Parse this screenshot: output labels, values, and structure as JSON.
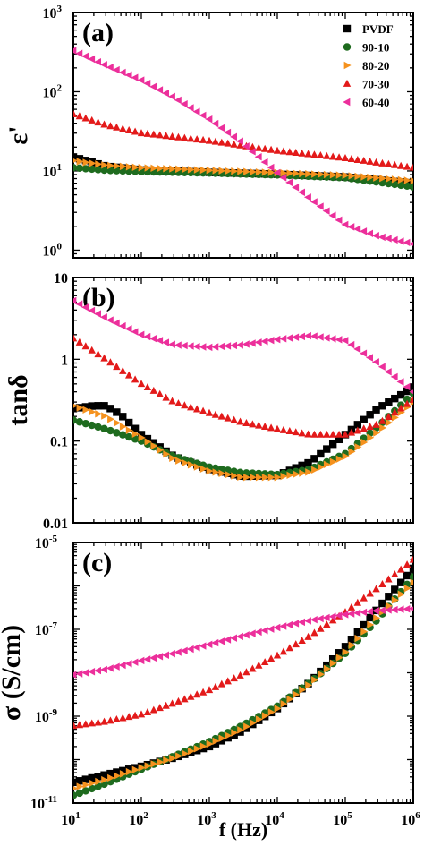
{
  "x_axis": {
    "label": "f (Hz)",
    "scale": "log",
    "range": [
      10,
      1000000
    ],
    "tick_mantissa": "10",
    "tick_exponents": [
      "1",
      "2",
      "3",
      "4",
      "5",
      "6"
    ]
  },
  "legend": [
    "PVDF",
    "90-10",
    "80-20",
    "70-30",
    "60-40"
  ],
  "colors": {
    "PVDF": "#000000",
    "90-10": "#1e6b1e",
    "80-20": "#f5921e",
    "70-30": "#e31a1a",
    "60-40": "#ec2f9b"
  },
  "markers": {
    "PVDF": "square",
    "90-10": "circle",
    "80-20": "triangle-right",
    "70-30": "triangle-up",
    "60-40": "triangle-left"
  },
  "chart_data": [
    {
      "type": "scatter",
      "panel_label": "(a)",
      "ylabel": "ε'",
      "yscale": "log",
      "ylim": [
        0.8,
        1000
      ],
      "ytick_labels": [
        {
          "value": 1,
          "mantissa": "10",
          "exp": "0"
        },
        {
          "value": 10,
          "mantissa": "10",
          "exp": "1"
        },
        {
          "value": 100,
          "mantissa": "10",
          "exp": "2"
        },
        {
          "value": 1000,
          "mantissa": "10",
          "exp": "3"
        }
      ],
      "legend_position": "top-right",
      "series": [
        {
          "name": "PVDF",
          "points": [
            [
              10,
              15
            ],
            [
              30,
              11.5
            ],
            [
              100,
              10.3
            ],
            [
              1000,
              9.6
            ],
            [
              10000,
              9.1
            ],
            [
              100000,
              8.4
            ],
            [
              1000000,
              7
            ]
          ]
        },
        {
          "name": "90-10",
          "points": [
            [
              10,
              11
            ],
            [
              30,
              10.2
            ],
            [
              100,
              9.8
            ],
            [
              1000,
              9.4
            ],
            [
              10000,
              8.9
            ],
            [
              100000,
              8.2
            ],
            [
              1000000,
              6.3
            ]
          ]
        },
        {
          "name": "80-20",
          "points": [
            [
              10,
              13.5
            ],
            [
              30,
              11.8
            ],
            [
              100,
              11
            ],
            [
              1000,
              10.2
            ],
            [
              10000,
              9.5
            ],
            [
              100000,
              8.8
            ],
            [
              1000000,
              7.5
            ]
          ]
        },
        {
          "name": "70-30",
          "points": [
            [
              10,
              52
            ],
            [
              30,
              38
            ],
            [
              100,
              30
            ],
            [
              1000,
              24
            ],
            [
              10000,
              18
            ],
            [
              100000,
              14.5
            ],
            [
              1000000,
              11
            ]
          ]
        },
        {
          "name": "60-40",
          "points": [
            [
              10,
              330
            ],
            [
              30,
              215
            ],
            [
              100,
              140
            ],
            [
              300,
              85
            ],
            [
              1000,
              45
            ],
            [
              3000,
              23
            ],
            [
              10000,
              9.5
            ],
            [
              30000,
              4.5
            ],
            [
              100000,
              2.1
            ],
            [
              300000,
              1.5
            ],
            [
              1000000,
              1.2
            ]
          ]
        }
      ]
    },
    {
      "type": "scatter",
      "panel_label": "(b)",
      "ylabel": "tanδ",
      "yscale": "log",
      "ylim": [
        0.01,
        10
      ],
      "ytick_labels": [
        {
          "value": 0.01,
          "text": "0.01"
        },
        {
          "value": 0.1,
          "text": "0.1"
        },
        {
          "value": 1,
          "text": "1"
        },
        {
          "value": 10,
          "text": "10"
        }
      ],
      "series": [
        {
          "name": "PVDF",
          "points": [
            [
              10,
              0.25
            ],
            [
              20,
              0.27
            ],
            [
              30,
              0.27
            ],
            [
              50,
              0.21
            ],
            [
              100,
              0.12
            ],
            [
              300,
              0.065
            ],
            [
              1000,
              0.045
            ],
            [
              3000,
              0.037
            ],
            [
              10000,
              0.038
            ],
            [
              30000,
              0.055
            ],
            [
              100000,
              0.12
            ],
            [
              300000,
              0.25
            ],
            [
              1000000,
              0.45
            ]
          ]
        },
        {
          "name": "90-10",
          "points": [
            [
              10,
              0.18
            ],
            [
              30,
              0.14
            ],
            [
              100,
              0.1
            ],
            [
              300,
              0.065
            ],
            [
              1000,
              0.048
            ],
            [
              3000,
              0.041
            ],
            [
              10000,
              0.039
            ],
            [
              30000,
              0.045
            ],
            [
              100000,
              0.07
            ],
            [
              300000,
              0.15
            ],
            [
              1000000,
              0.38
            ]
          ]
        },
        {
          "name": "80-20",
          "points": [
            [
              10,
              0.27
            ],
            [
              30,
              0.2
            ],
            [
              100,
              0.11
            ],
            [
              300,
              0.06
            ],
            [
              1000,
              0.043
            ],
            [
              3000,
              0.036
            ],
            [
              10000,
              0.036
            ],
            [
              30000,
              0.042
            ],
            [
              100000,
              0.065
            ],
            [
              300000,
              0.13
            ],
            [
              1000000,
              0.3
            ]
          ]
        },
        {
          "name": "70-30",
          "points": [
            [
              10,
              1.8
            ],
            [
              30,
              1.0
            ],
            [
              100,
              0.5
            ],
            [
              300,
              0.3
            ],
            [
              1000,
              0.22
            ],
            [
              3000,
              0.17
            ],
            [
              10000,
              0.14
            ],
            [
              30000,
              0.12
            ],
            [
              100000,
              0.12
            ],
            [
              300000,
              0.16
            ],
            [
              1000000,
              0.32
            ]
          ]
        },
        {
          "name": "60-40",
          "points": [
            [
              10,
              5.2
            ],
            [
              30,
              3.2
            ],
            [
              100,
              2.0
            ],
            [
              300,
              1.5
            ],
            [
              1000,
              1.4
            ],
            [
              3000,
              1.5
            ],
            [
              10000,
              1.75
            ],
            [
              30000,
              1.95
            ],
            [
              100000,
              1.7
            ],
            [
              300000,
              0.9
            ],
            [
              1000000,
              0.4
            ]
          ]
        }
      ]
    },
    {
      "type": "scatter",
      "panel_label": "(c)",
      "ylabel": "σ (S/cm)",
      "yscale": "log",
      "ylim": [
        1e-11,
        1e-05
      ],
      "ytick_labels": [
        {
          "value": 1e-11,
          "mantissa": "10",
          "exp": "-11"
        },
        {
          "value": 1e-09,
          "mantissa": "10",
          "exp": "-9"
        },
        {
          "value": 1e-07,
          "mantissa": "10",
          "exp": "-7"
        },
        {
          "value": 1e-05,
          "mantissa": "10",
          "exp": "-5"
        }
      ],
      "series": [
        {
          "name": "PVDF",
          "points": [
            [
              10,
              3e-11
            ],
            [
              30,
              4.5e-11
            ],
            [
              100,
              7e-11
            ],
            [
              300,
              1.1e-10
            ],
            [
              1000,
              2e-10
            ],
            [
              3000,
              4.5e-10
            ],
            [
              10000,
              1.5e-09
            ],
            [
              30000,
              6e-09
            ],
            [
              100000,
              4e-08
            ],
            [
              300000,
              3e-07
            ],
            [
              1000000,
              2.5e-06
            ]
          ]
        },
        {
          "name": "90-10",
          "points": [
            [
              10,
              1.5e-11
            ],
            [
              30,
              2.8e-11
            ],
            [
              100,
              6e-11
            ],
            [
              300,
              1.2e-10
            ],
            [
              1000,
              2.6e-10
            ],
            [
              3000,
              6e-10
            ],
            [
              10000,
              1.7e-09
            ],
            [
              30000,
              6e-09
            ],
            [
              100000,
              2.8e-08
            ],
            [
              300000,
              1.7e-07
            ],
            [
              1000000,
              1.6e-06
            ]
          ]
        },
        {
          "name": "80-20",
          "points": [
            [
              10,
              2.2e-11
            ],
            [
              30,
              3.5e-11
            ],
            [
              100,
              6.5e-11
            ],
            [
              300,
              1.1e-10
            ],
            [
              1000,
              2.3e-10
            ],
            [
              3000,
              5e-10
            ],
            [
              10000,
              1.5e-09
            ],
            [
              30000,
              5.5e-09
            ],
            [
              100000,
              3e-08
            ],
            [
              300000,
              2e-07
            ],
            [
              1000000,
              1.2e-06
            ]
          ]
        },
        {
          "name": "70-30",
          "points": [
            [
              10,
              6e-10
            ],
            [
              30,
              7.5e-10
            ],
            [
              100,
              1.1e-09
            ],
            [
              300,
              2e-09
            ],
            [
              1000,
              4e-09
            ],
            [
              3000,
              9e-09
            ],
            [
              10000,
              2.5e-08
            ],
            [
              30000,
              7e-08
            ],
            [
              100000,
              2.5e-07
            ],
            [
              300000,
              9e-07
            ],
            [
              1000000,
              4e-06
            ]
          ]
        },
        {
          "name": "60-40",
          "points": [
            [
              10,
              9e-09
            ],
            [
              30,
              1.2e-08
            ],
            [
              100,
              1.9e-08
            ],
            [
              300,
              2.8e-08
            ],
            [
              1000,
              4.5e-08
            ],
            [
              3000,
              7e-08
            ],
            [
              10000,
              1.1e-07
            ],
            [
              30000,
              1.6e-07
            ],
            [
              100000,
              2.2e-07
            ],
            [
              300000,
              2.7e-07
            ],
            [
              1000000,
              3e-07
            ]
          ]
        }
      ]
    }
  ]
}
